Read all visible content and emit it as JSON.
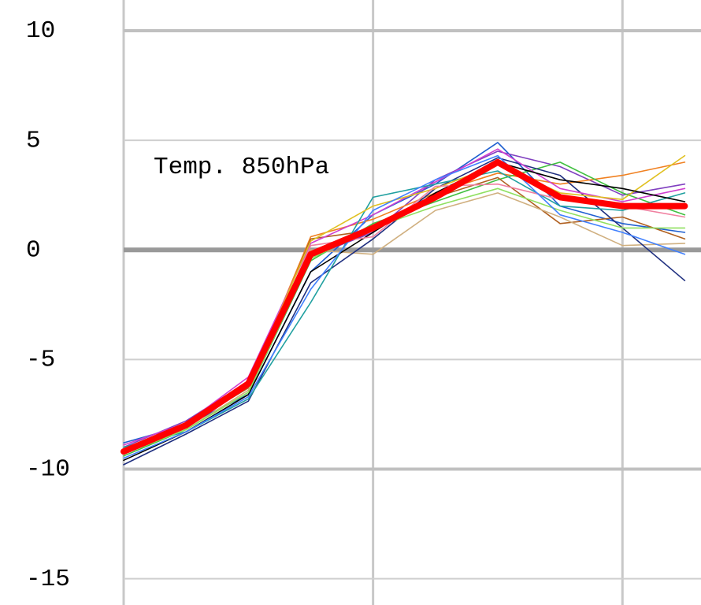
{
  "chart_data": {
    "type": "line",
    "annotation": "Temp. 850hPa",
    "x": [
      0,
      1,
      2,
      3,
      4,
      5,
      6,
      7,
      8,
      9
    ],
    "xlim": [
      0,
      9.26
    ],
    "xticks": [
      0,
      4,
      8
    ],
    "ylim": [
      -16.2,
      11.4
    ],
    "yticks": [
      -15,
      -10,
      -5,
      0,
      5,
      10
    ],
    "grid": true,
    "series": [
      {
        "color": "#1f5fd0",
        "values": [
          -8.8,
          -8.0,
          -6.6,
          -1.0,
          1.6,
          3.0,
          4.9,
          2.0,
          1.2,
          0.8
        ]
      },
      {
        "color": "#8040c0",
        "values": [
          -9.0,
          -7.8,
          -6.0,
          -0.3,
          0.8,
          3.2,
          4.5,
          3.8,
          2.5,
          3.0
        ]
      },
      {
        "color": "#f08020",
        "values": [
          -9.2,
          -8.1,
          -6.2,
          0.6,
          1.4,
          2.6,
          3.5,
          3.0,
          3.4,
          4.0
        ]
      },
      {
        "color": "#40c040",
        "values": [
          -9.4,
          -8.2,
          -6.5,
          -0.5,
          1.2,
          2.2,
          3.2,
          4.0,
          2.6,
          1.6
        ]
      },
      {
        "color": "#b06020",
        "values": [
          -9.1,
          -8.0,
          -6.3,
          0.5,
          0.9,
          2.4,
          3.3,
          1.2,
          1.5,
          0.5
        ]
      },
      {
        "color": "#d0b080",
        "values": [
          -9.3,
          -8.2,
          -6.4,
          0.0,
          -0.2,
          1.8,
          2.6,
          1.5,
          0.2,
          0.3
        ]
      },
      {
        "color": "#203080",
        "values": [
          -9.8,
          -8.4,
          -6.9,
          -1.5,
          0.5,
          2.8,
          4.2,
          3.4,
          1.0,
          -1.4
        ]
      },
      {
        "color": "#d040d0",
        "values": [
          -8.9,
          -7.9,
          -5.8,
          0.3,
          1.6,
          3.1,
          4.6,
          2.8,
          2.2,
          2.8
        ]
      },
      {
        "color": "#20a0a0",
        "values": [
          -9.0,
          -8.3,
          -6.8,
          -2.4,
          2.4,
          3.0,
          3.6,
          2.0,
          1.8,
          2.6
        ]
      },
      {
        "color": "#e0c020",
        "values": [
          -9.2,
          -8.0,
          -6.1,
          0.4,
          2.0,
          2.8,
          3.9,
          2.6,
          2.3,
          4.3
        ]
      },
      {
        "color": "#000000",
        "values": [
          -9.6,
          -8.3,
          -6.6,
          -1.0,
          0.8,
          2.6,
          4.0,
          3.2,
          2.8,
          2.2
        ]
      },
      {
        "color": "#f080a0",
        "values": [
          -9.1,
          -8.1,
          -6.2,
          0.2,
          0.6,
          2.9,
          3.0,
          2.3,
          2.0,
          1.5
        ]
      },
      {
        "color": "#90e060",
        "values": [
          -9.3,
          -8.2,
          -6.5,
          -0.4,
          1.0,
          2.0,
          2.8,
          1.8,
          1.0,
          1.0
        ]
      },
      {
        "color": "#4080ff",
        "values": [
          -9.5,
          -8.3,
          -6.7,
          -1.8,
          1.8,
          3.2,
          4.3,
          1.6,
          0.8,
          -0.2
        ]
      },
      {
        "color": "#ff0000",
        "line_width": 8,
        "values": [
          -9.2,
          -8.0,
          -6.1,
          -0.2,
          1.0,
          2.4,
          4.0,
          2.4,
          2.0,
          2.0
        ]
      }
    ]
  }
}
